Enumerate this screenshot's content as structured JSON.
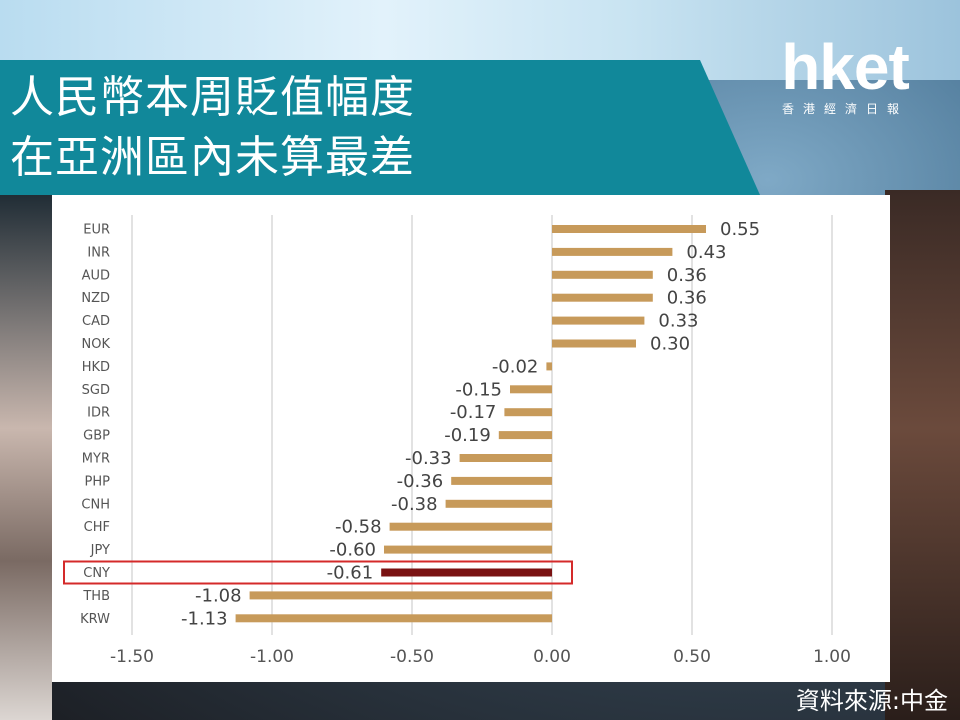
{
  "title": {
    "line1": "人民幣本周貶值幅度",
    "line2": "在亞洲區內未算最差"
  },
  "logo": {
    "main": "hket",
    "sub": "香港經濟日報"
  },
  "source": "資料來源:中金",
  "colors": {
    "banner": "#11889a",
    "bar": "#c79a5a",
    "highlight_bar": "#7a1212",
    "highlight_box": "#d42a2a",
    "grid": "#d9d9d9"
  },
  "chart_data": {
    "type": "bar",
    "orientation": "horizontal",
    "categories": [
      "EUR",
      "INR",
      "AUD",
      "NZD",
      "CAD",
      "NOK",
      "HKD",
      "SGD",
      "IDR",
      "GBP",
      "MYR",
      "PHP",
      "CNH",
      "CHF",
      "JPY",
      "CNY",
      "THB",
      "KRW"
    ],
    "values": [
      0.55,
      0.43,
      0.36,
      0.36,
      0.33,
      0.3,
      -0.02,
      -0.15,
      -0.17,
      -0.19,
      -0.33,
      -0.36,
      -0.38,
      -0.58,
      -0.6,
      -0.61,
      -1.08,
      -1.13
    ],
    "data_labels": [
      "0.55",
      "0.43",
      "0.36",
      "0.36",
      "0.33",
      "0.30",
      "-0.02",
      "-0.15",
      "-0.17",
      "-0.19",
      "-0.33",
      "-0.36",
      "-0.38",
      "-0.58",
      "-0.60",
      "-0.61",
      "-1.08",
      "-1.13"
    ],
    "highlight": "CNY",
    "xlim": [
      -1.5,
      1.0
    ],
    "xticks": [
      "-1.50",
      "-1.00",
      "-0.50",
      "0.00",
      "0.50",
      "1.00"
    ],
    "xtick_values": [
      -1.5,
      -1.0,
      -0.5,
      0.0,
      0.5,
      1.0
    ],
    "grid": true
  }
}
